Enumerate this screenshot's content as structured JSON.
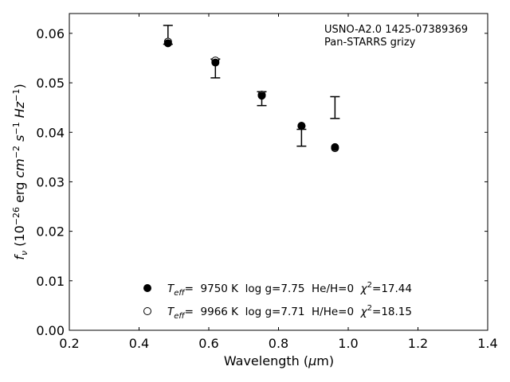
{
  "chart_data": {
    "type": "scatter",
    "xlabel": "Wavelength (μm)",
    "ylabel": "f_ν (10^−26 erg cm^−2 s^−1 Hz^−1)",
    "xlim": [
      0.2,
      1.4
    ],
    "ylim": [
      0.0,
      0.064
    ],
    "xticks": [
      0.2,
      0.4,
      0.6,
      0.8,
      1.0,
      1.2,
      1.4
    ],
    "xtick_labels": [
      "0.2",
      "0.4",
      "0.6",
      "0.8",
      "1.0",
      "1.2",
      "1.4"
    ],
    "yticks": [
      0.0,
      0.01,
      0.02,
      0.03,
      0.04,
      0.05,
      0.06
    ],
    "ytick_labels": [
      "0.00",
      "0.01",
      "0.02",
      "0.03",
      "0.04",
      "0.05",
      "0.06"
    ],
    "grid": false,
    "annotation": [
      "USNO-A2.0 1425-07389369",
      "Pan-STARRS grizy"
    ],
    "annotation_position": "top-right",
    "legend_position": "bottom-center",
    "observed": {
      "x": [
        0.483,
        0.619,
        0.752,
        0.866,
        0.962
      ],
      "y_low": [
        0.0578,
        0.051,
        0.0454,
        0.0372,
        0.0428
      ],
      "y_high": [
        0.0616,
        0.0548,
        0.0482,
        0.0406,
        0.0472
      ]
    },
    "series": [
      {
        "marker": "filled",
        "legend_parts": {
          "teff": "T",
          "teff_sub": "eff",
          "eq": "=  9750 K  log g=7.75  He/H=0  ",
          "chi": "χ",
          "chi_sup": "2",
          "chi_val": "=17.44"
        },
        "x": [
          0.483,
          0.619,
          0.752,
          0.866,
          0.962
        ],
        "y": [
          0.058,
          0.0541,
          0.0474,
          0.0413,
          0.037
        ]
      },
      {
        "marker": "open",
        "legend_parts": {
          "teff": "T",
          "teff_sub": "eff",
          "eq": "=  9966 K  log g=7.71  H/He=0  ",
          "chi": "χ",
          "chi_sup": "2",
          "chi_val": "=18.15"
        },
        "x": [
          0.483,
          0.619,
          0.752,
          0.866,
          0.962
        ],
        "y": [
          0.0583,
          0.0545,
          0.0476,
          0.0413,
          0.0368
        ]
      }
    ]
  }
}
